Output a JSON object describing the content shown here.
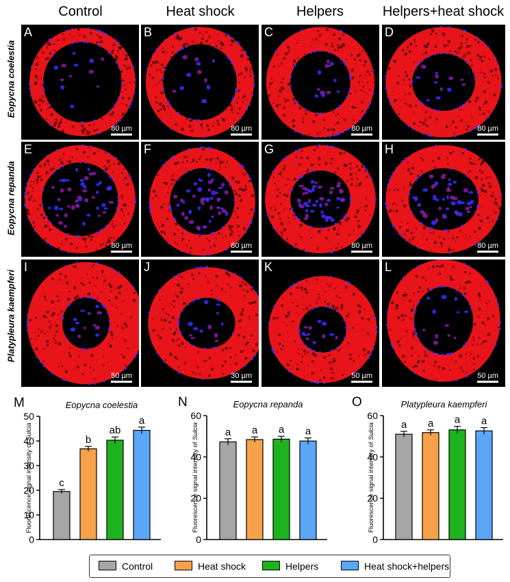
{
  "column_titles": [
    "Control",
    "Heat shock",
    "Helpers",
    "Helpers+heat shock"
  ],
  "row_labels": [
    "Eopycna coelestia",
    "Eopycna repanda",
    "Platypleura kaempferi"
  ],
  "panels": [
    {
      "letter": "A",
      "scale": "80 µm"
    },
    {
      "letter": "B",
      "scale": "80 µm"
    },
    {
      "letter": "C",
      "scale": "80 µm"
    },
    {
      "letter": "D",
      "scale": "80 µm"
    },
    {
      "letter": "E",
      "scale": "80 µm"
    },
    {
      "letter": "F",
      "scale": "80 µm"
    },
    {
      "letter": "G",
      "scale": "80 µm"
    },
    {
      "letter": "H",
      "scale": "80 µm"
    },
    {
      "letter": "I",
      "scale": "50 µm"
    },
    {
      "letter": "J",
      "scale": "30 µm"
    },
    {
      "letter": "K",
      "scale": "50 µm"
    },
    {
      "letter": "L",
      "scale": "50 µm"
    }
  ],
  "colors": {
    "tissue_red": "#e8141a",
    "nuclei_blue": "#3a2cff",
    "background": "#000000",
    "Control": "#a6a6a8",
    "Heat shock": "#f7a24a",
    "Helpers": "#1eb21e",
    "Heat shock+helpers": "#5aa6f7"
  },
  "legend": [
    "Control",
    "Heat shock",
    "Helpers",
    "Heat shock+helpers"
  ],
  "chart_data": [
    {
      "type": "bar",
      "panel_letter": "M",
      "title": "Eopycna coelestia",
      "ylabel_prefix": "Fluorescence signal intensity of ",
      "ylabel_italic": "Sulcia",
      "categories": [
        "Control",
        "Heat shock",
        "Helpers",
        "Heat shock+helpers"
      ],
      "values": [
        19.5,
        36.8,
        40.3,
        44.3
      ],
      "errors": [
        0.8,
        1.0,
        1.3,
        1.3
      ],
      "letters": [
        "c",
        "b",
        "ab",
        "a"
      ],
      "ylim": [
        0,
        50
      ],
      "yticks": [
        0,
        10,
        20,
        30,
        40,
        50
      ]
    },
    {
      "type": "bar",
      "panel_letter": "N",
      "title": "Eopycna repanda",
      "ylabel_prefix": "Fluorescence signal intensity of ",
      "ylabel_italic": "Sulcia",
      "categories": [
        "Control",
        "Heat shock",
        "Helpers",
        "Heat shock+helpers"
      ],
      "values": [
        47.3,
        48.4,
        48.6,
        47.7
      ],
      "errors": [
        1.5,
        1.3,
        1.4,
        1.5
      ],
      "letters": [
        "a",
        "a",
        "a",
        "a"
      ],
      "ylim": [
        0,
        60
      ],
      "yticks": [
        0,
        20,
        40,
        60
      ]
    },
    {
      "type": "bar",
      "panel_letter": "O",
      "title": "Platypleura kaempferi",
      "ylabel_prefix": "Fluorescence signal intensity of ",
      "ylabel_italic": "Sulcia",
      "categories": [
        "Control",
        "Heat shock",
        "Helpers",
        "Heat shock+helpers"
      ],
      "values": [
        51.0,
        51.8,
        53.1,
        52.6
      ],
      "errors": [
        1.4,
        1.3,
        1.7,
        1.6
      ],
      "letters": [
        "a",
        "a",
        "a",
        "a"
      ],
      "ylim": [
        0,
        60
      ],
      "yticks": [
        0,
        20,
        40,
        60
      ]
    }
  ]
}
